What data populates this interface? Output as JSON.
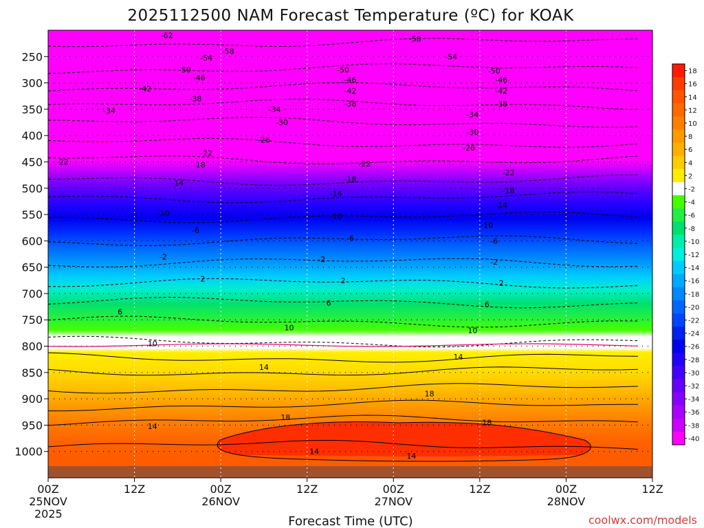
{
  "chart_data": {
    "type": "heatmap",
    "title": "2025112500 NAM Forecast Temperature (ºC) for KOAK",
    "xlabel": "Forecast Time (UTC)",
    "credit": "coolwx.com/models",
    "pressure_ticks": [
      250,
      300,
      350,
      400,
      450,
      500,
      550,
      600,
      650,
      700,
      750,
      800,
      850,
      900,
      950,
      1000
    ],
    "plim": [
      200,
      1050
    ],
    "x_range_hours": [
      0,
      84
    ],
    "time_ticks": [
      {
        "hour": 0,
        "line1": "00Z",
        "line2": "25NOV",
        "line3": "2025"
      },
      {
        "hour": 12,
        "line1": "12Z",
        "line2": "",
        "line3": ""
      },
      {
        "hour": 24,
        "line1": "00Z",
        "line2": "26NOV",
        "line3": ""
      },
      {
        "hour": 36,
        "line1": "12Z",
        "line2": "",
        "line3": ""
      },
      {
        "hour": 48,
        "line1": "00Z",
        "line2": "27NOV",
        "line3": ""
      },
      {
        "hour": 60,
        "line1": "12Z",
        "line2": "",
        "line3": ""
      },
      {
        "hour": 72,
        "line1": "00Z",
        "line2": "28NOV",
        "line3": ""
      },
      {
        "hour": 84,
        "line1": "12Z",
        "line2": "",
        "line3": ""
      }
    ],
    "colorbar": {
      "labels": [
        "18",
        "16",
        "14",
        "12",
        "10",
        "8",
        "6",
        "4",
        "2",
        "-2",
        "-4",
        "-6",
        "-8",
        "-10",
        "-12",
        "-14",
        "-16",
        "-18",
        "-20",
        "-22",
        "-24",
        "-26",
        "-28",
        "-30",
        "-32",
        "-34",
        "-36",
        "-38",
        "-40"
      ],
      "colors": [
        "#ff1a00",
        "#ff3c00",
        "#ff5500",
        "#ff6a00",
        "#ff8000",
        "#ff9a00",
        "#ffb000",
        "#ffcc00",
        "#ffee00",
        "#ffffff",
        "#44ff00",
        "#22ee44",
        "#00e070",
        "#00eeaa",
        "#00eedd",
        "#00ccff",
        "#00aaff",
        "#0088ff",
        "#0066ff",
        "#0044ff",
        "#0022ee",
        "#0000ee",
        "#2200ff",
        "#4400ff",
        "#6600ff",
        "#8800ff",
        "#aa00ff",
        "#cc00ff",
        "#ff00ff"
      ]
    },
    "contour_labels": [
      {
        "v": "-62",
        "h": 16.5,
        "p": 210
      },
      {
        "v": "-58",
        "h": 51,
        "p": 216
      },
      {
        "v": "-58",
        "h": 25,
        "p": 240
      },
      {
        "v": "-54",
        "h": 22,
        "p": 252
      },
      {
        "v": "-54",
        "h": 56,
        "p": 250
      },
      {
        "v": "-50",
        "h": 19,
        "p": 275
      },
      {
        "v": "-50",
        "h": 41,
        "p": 275
      },
      {
        "v": "-50",
        "h": 62,
        "p": 277
      },
      {
        "v": "-46",
        "h": 21,
        "p": 290
      },
      {
        "v": "-46",
        "h": 42,
        "p": 294
      },
      {
        "v": "-46",
        "h": 63,
        "p": 294
      },
      {
        "v": "-42",
        "h": 13.5,
        "p": 311
      },
      {
        "v": "-42",
        "h": 42,
        "p": 315
      },
      {
        "v": "-42",
        "h": 63,
        "p": 315
      },
      {
        "v": "-38",
        "h": 20.5,
        "p": 330
      },
      {
        "v": "-38",
        "h": 42,
        "p": 340
      },
      {
        "v": "-38",
        "h": 63,
        "p": 340
      },
      {
        "v": "-34",
        "h": 8.5,
        "p": 353
      },
      {
        "v": "-34",
        "h": 31.5,
        "p": 350
      },
      {
        "v": "-34",
        "h": 59,
        "p": 360
      },
      {
        "v": "-30",
        "h": 32.5,
        "p": 375
      },
      {
        "v": "-30",
        "h": 59,
        "p": 393
      },
      {
        "v": "-26",
        "h": 30,
        "p": 408
      },
      {
        "v": "-26",
        "h": 58.5,
        "p": 423
      },
      {
        "v": "-22",
        "h": 2,
        "p": 450
      },
      {
        "v": "-22",
        "h": 22,
        "p": 433
      },
      {
        "v": "-22",
        "h": 44,
        "p": 453
      },
      {
        "v": "-22",
        "h": 64,
        "p": 470
      },
      {
        "v": "-18",
        "h": 21,
        "p": 455
      },
      {
        "v": "-18",
        "h": 42,
        "p": 483
      },
      {
        "v": "-18",
        "h": 64,
        "p": 505
      },
      {
        "v": "-14",
        "h": 18,
        "p": 490
      },
      {
        "v": "-14",
        "h": 40,
        "p": 510
      },
      {
        "v": "-14",
        "h": 63,
        "p": 532
      },
      {
        "v": "-10",
        "h": 16,
        "p": 547
      },
      {
        "v": "-10",
        "h": 40,
        "p": 553
      },
      {
        "v": "-10",
        "h": 61,
        "p": 570
      },
      {
        "v": "-6",
        "h": 20.5,
        "p": 580
      },
      {
        "v": "-6",
        "h": 42,
        "p": 595
      },
      {
        "v": "-6",
        "h": 62,
        "p": 600
      },
      {
        "v": "-2",
        "h": 16,
        "p": 630
      },
      {
        "v": "-2",
        "h": 38,
        "p": 635
      },
      {
        "v": "-2",
        "h": 62,
        "p": 640
      },
      {
        "v": "2",
        "h": 21.5,
        "p": 672
      },
      {
        "v": "2",
        "h": 41,
        "p": 675
      },
      {
        "v": "2",
        "h": 63,
        "p": 680
      },
      {
        "v": "6",
        "h": 10,
        "p": 735
      },
      {
        "v": "6",
        "h": 39,
        "p": 718
      },
      {
        "v": "6",
        "h": 61,
        "p": 720
      },
      {
        "v": "10",
        "h": 14.5,
        "p": 795
      },
      {
        "v": "10",
        "h": 33.5,
        "p": 765
      },
      {
        "v": "10",
        "h": 59,
        "p": 770
      },
      {
        "v": "14",
        "h": 30,
        "p": 840
      },
      {
        "v": "14",
        "h": 57,
        "p": 820
      },
      {
        "v": "14",
        "h": 14.5,
        "p": 952
      },
      {
        "v": "14",
        "h": 37,
        "p": 1000
      },
      {
        "v": "14",
        "h": 50.5,
        "p": 1008
      },
      {
        "v": "18",
        "h": 33,
        "p": 935
      },
      {
        "v": "18",
        "h": 53,
        "p": 890
      },
      {
        "v": "18",
        "h": 61,
        "p": 945
      }
    ]
  }
}
